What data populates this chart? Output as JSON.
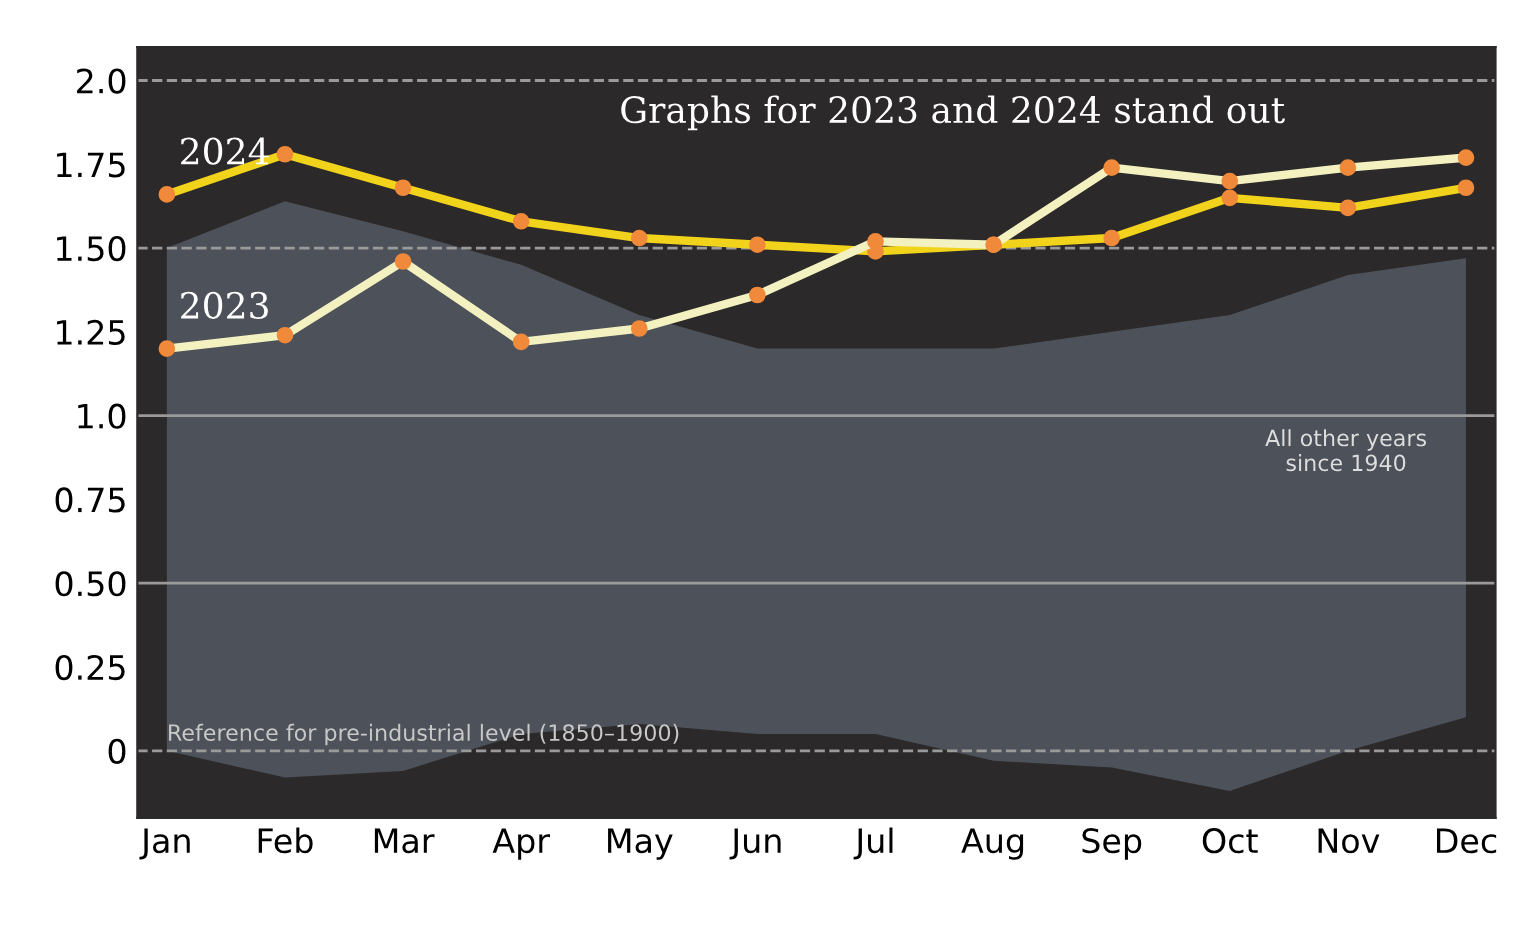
{
  "chart_data": {
    "type": "line",
    "title": "Graphs for 2023 and 2024 stand out",
    "categories": [
      "Jan",
      "Feb",
      "Mar",
      "Apr",
      "May",
      "Jun",
      "Jul",
      "Aug",
      "Sep",
      "Oct",
      "Nov",
      "Dec"
    ],
    "series": [
      {
        "type": "area",
        "color": "#8c9fb4",
        "values": [
          null,
          null,
          null,
          null,
          null,
          null,
          null,
          null,
          null,
          null,
          null,
          null
        ],
        "lower": [
          0.0,
          -0.08,
          -0.06,
          0.05,
          0.08,
          0.05,
          0.05,
          -0.03,
          -0.05,
          -0.12,
          0.0,
          0.1
        ],
        "upper": [
          1.5,
          1.64,
          1.55,
          1.45,
          1.3,
          1.2,
          1.2,
          1.2,
          1.25,
          1.3,
          1.42,
          1.47
        ]
      },
      {
        "name": "2024",
        "color": "#f2d31b",
        "values": [
          1.66,
          1.78,
          1.68,
          1.58,
          1.53,
          1.51,
          1.49,
          1.51,
          1.53,
          1.65,
          1.62,
          1.68
        ]
      },
      {
        "name": "2023",
        "color": "#f3f1c0",
        "values": [
          1.2,
          1.24,
          1.46,
          1.22,
          1.26,
          1.36,
          1.52,
          1.51,
          1.74,
          1.7,
          1.74,
          1.77
        ]
      }
    ],
    "ylim": [
      -0.2,
      2.1
    ],
    "yticks": [
      0,
      {
        "value": 0.25,
        "label": "0.25"
      },
      {
        "value": 0.5,
        "label": "0.50"
      },
      {
        "value": 0.75,
        "label": "0.75"
      },
      {
        "value": 1.0,
        "label": "1.0"
      },
      {
        "value": 1.25,
        "label": "1.25"
      },
      {
        "value": 1.5,
        "label": "1.50"
      },
      {
        "value": 1.75,
        "label": "1.75"
      },
      {
        "value": 2.0,
        "label": "2.0"
      }
    ],
    "ref_lines": [
      {
        "axis": "y",
        "value": 0,
        "label": "Reference for pre-industrial level (1850–1900)",
        "line_style": "dashed",
        "color": "#9a9a9a"
      },
      {
        "axis": "y",
        "value": 0.5,
        "color": "#9a9a9a",
        "line_style": "solid"
      },
      {
        "axis": "y",
        "value": 1.0,
        "color": "#9a9a9a",
        "line_style": "solid"
      },
      {
        "axis": "y",
        "value": 1.5,
        "color": "#9a9a9a",
        "line_style": "dashed"
      },
      {
        "axis": "y",
        "value": 2.0,
        "color": "#9a9a9a",
        "line_style": "dashed"
      }
    ],
    "annotations": [
      "All other years\nsince 1940"
    ],
    "marker": "circle",
    "grid": false,
    "legend": false
  }
}
